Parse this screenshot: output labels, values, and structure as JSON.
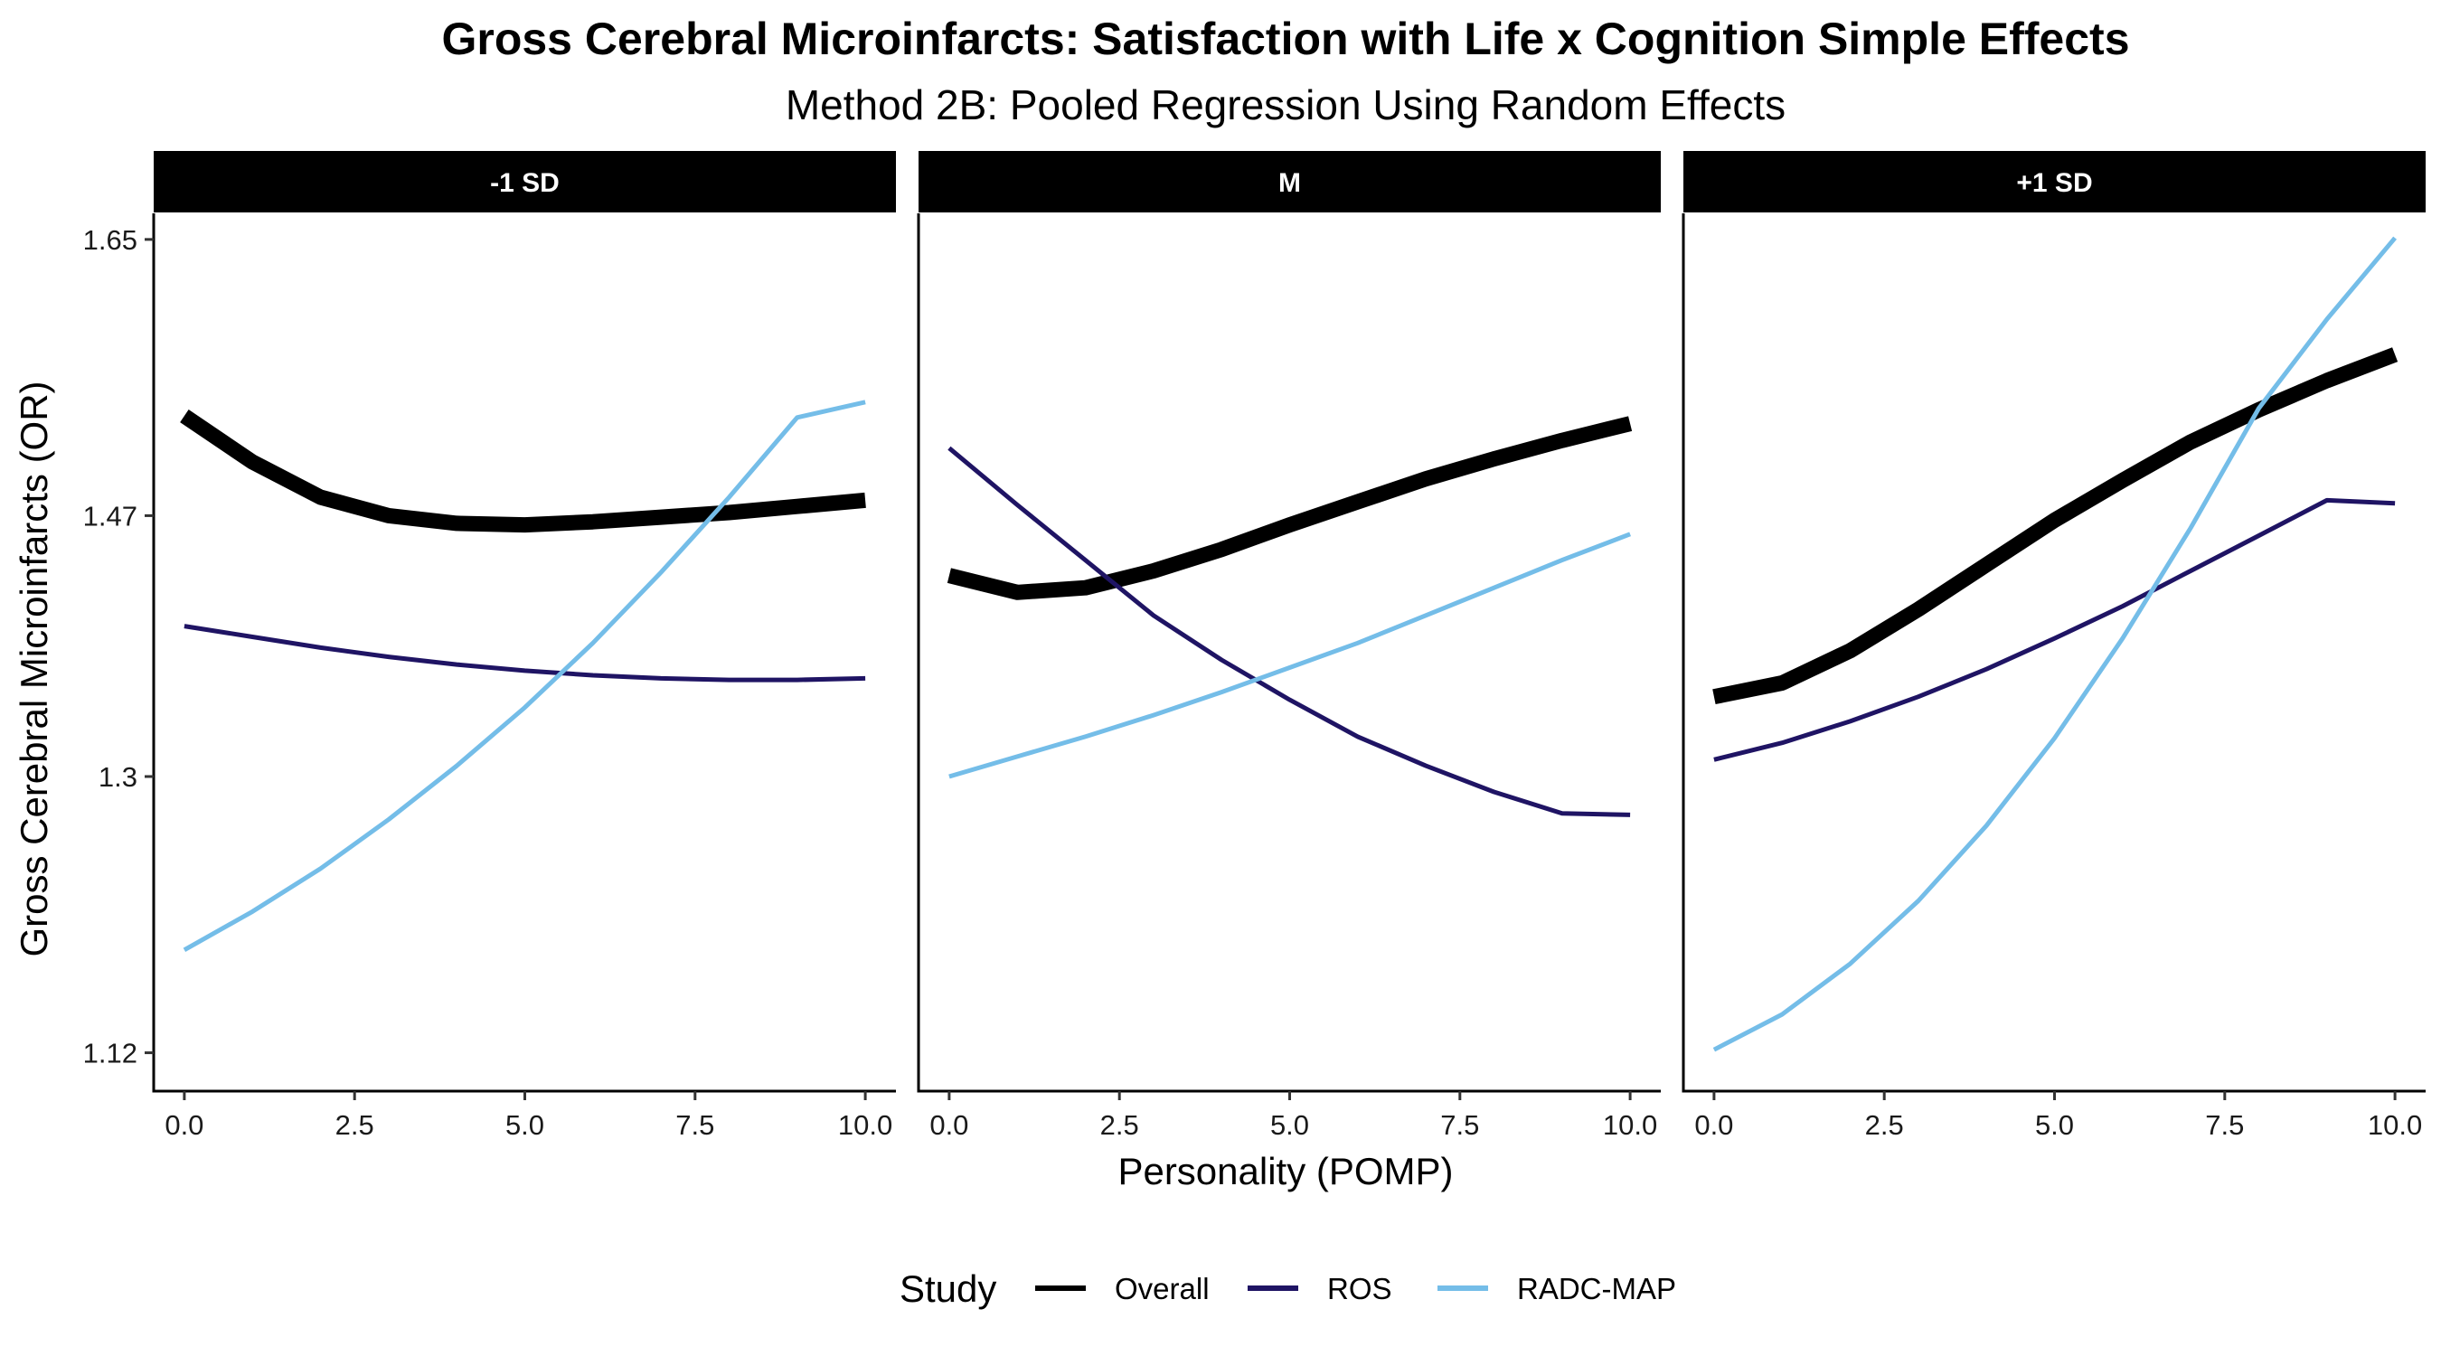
{
  "chart_data": {
    "type": "line",
    "title": "Gross Cerebral Microinfarcts: Satisfaction with Life x Cognition Simple Effects",
    "subtitle": "Method 2B: Pooled Regression Using Random Effects",
    "xlabel": "Personality (POMP)",
    "ylabel": "Gross Cerebral Microinfarcts (OR)",
    "xlim": [
      -0.45,
      10.45
    ],
    "ylim": [
      1.095,
      1.667
    ],
    "x_ticks": [
      0,
      2.5,
      5,
      7.5,
      10
    ],
    "x_tick_labels": [
      "0.0",
      "2.5",
      "5.0",
      "7.5",
      "10.0"
    ],
    "y_ticks": [
      1.12,
      1.3,
      1.47,
      1.65
    ],
    "y_tick_labels": [
      "1.12",
      "1.3",
      "1.47",
      "1.65"
    ],
    "legend": {
      "title": "Study",
      "position": "bottom",
      "entries": [
        {
          "name": "Overall",
          "color": "#000000"
        },
        {
          "name": "ROS",
          "color": "#1f1464"
        },
        {
          "name": "RADC-MAP",
          "color": "#74bde8"
        }
      ]
    },
    "grid": false,
    "x": [
      0,
      1,
      2,
      3,
      4,
      5,
      6,
      7,
      8,
      9,
      10
    ],
    "panels": [
      {
        "label": "-1 SD",
        "series": [
          {
            "name": "Overall",
            "color": "#000000",
            "width": "thick",
            "values": [
              1.535,
              1.505,
              1.482,
              1.47,
              1.465,
              1.464,
              1.466,
              1.469,
              1.472,
              1.476,
              1.48
            ]
          },
          {
            "name": "ROS",
            "color": "#1f1464",
            "width": "thin",
            "values": [
              1.398,
              1.391,
              1.384,
              1.378,
              1.373,
              1.369,
              1.366,
              1.364,
              1.363,
              1.363,
              1.364
            ]
          },
          {
            "name": "RADC-MAP",
            "color": "#74bde8",
            "width": "thin",
            "values": [
              1.187,
              1.212,
              1.24,
              1.272,
              1.307,
              1.345,
              1.387,
              1.433,
              1.482,
              1.534,
              1.544
            ]
          }
        ]
      },
      {
        "label": "M",
        "series": [
          {
            "name": "Overall",
            "color": "#000000",
            "width": "thick",
            "values": [
              1.431,
              1.42,
              1.423,
              1.434,
              1.448,
              1.464,
              1.479,
              1.494,
              1.507,
              1.519,
              1.53
            ]
          },
          {
            "name": "ROS",
            "color": "#1f1464",
            "width": "thin",
            "values": [
              1.514,
              1.477,
              1.441,
              1.405,
              1.376,
              1.35,
              1.326,
              1.307,
              1.29,
              1.276,
              1.275
            ]
          },
          {
            "name": "RADC-MAP",
            "color": "#74bde8",
            "width": "thin",
            "values": [
              1.3,
              1.313,
              1.326,
              1.34,
              1.355,
              1.371,
              1.387,
              1.405,
              1.423,
              1.441,
              1.458
            ]
          }
        ]
      },
      {
        "label": "+1 SD",
        "series": [
          {
            "name": "Overall",
            "color": "#000000",
            "width": "thick",
            "values": [
              1.352,
              1.361,
              1.382,
              1.409,
              1.438,
              1.467,
              1.493,
              1.518,
              1.539,
              1.558,
              1.575
            ]
          },
          {
            "name": "ROS",
            "color": "#1f1464",
            "width": "thin",
            "values": [
              1.311,
              1.322,
              1.336,
              1.352,
              1.37,
              1.39,
              1.411,
              1.434,
              1.457,
              1.48,
              1.478
            ]
          },
          {
            "name": "RADC-MAP",
            "color": "#74bde8",
            "width": "thin",
            "values": [
              1.122,
              1.145,
              1.178,
              1.219,
              1.268,
              1.325,
              1.39,
              1.462,
              1.54,
              1.598,
              1.651
            ]
          }
        ]
      }
    ]
  }
}
